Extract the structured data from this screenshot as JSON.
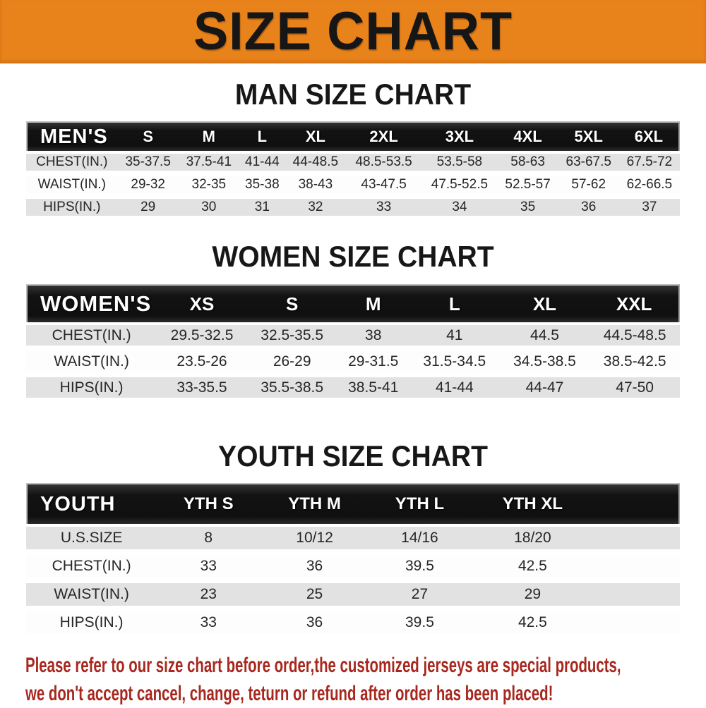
{
  "banner": {
    "title": "SIZE CHART",
    "bg_color": "#E8821B"
  },
  "sections": [
    {
      "title": "MAN SIZE CHART",
      "table": {
        "corner_label": "MEN'S",
        "columns": [
          "S",
          "M",
          "L",
          "XL",
          "2XL",
          "3XL",
          "4XL",
          "5XL",
          "6XL"
        ],
        "rows": [
          {
            "label": "CHEST(IN.)",
            "values": [
              "35-37.5",
              "37.5-41",
              "41-44",
              "44-48.5",
              "48.5-53.5",
              "53.5-58",
              "58-63",
              "63-67.5",
              "67.5-72"
            ]
          },
          {
            "label": "WAIST(IN.)",
            "values": [
              "29-32",
              "32-35",
              "35-38",
              "38-43",
              "43-47.5",
              "47.5-52.5",
              "52.5-57",
              "57-62",
              "62-66.5"
            ]
          },
          {
            "label": "HIPS(IN.)",
            "values": [
              "29",
              "30",
              "31",
              "32",
              "33",
              "34",
              "35",
              "36",
              "37"
            ]
          }
        ]
      }
    },
    {
      "title": "WOMEN SIZE CHART",
      "table": {
        "corner_label": "WOMEN'S",
        "columns": [
          "XS",
          "S",
          "M",
          "L",
          "XL",
          "XXL"
        ],
        "rows": [
          {
            "label": "CHEST(IN.)",
            "values": [
              "29.5-32.5",
              "32.5-35.5",
              "38",
              "41",
              "44.5",
              "44.5-48.5"
            ]
          },
          {
            "label": "WAIST(IN.)",
            "values": [
              "23.5-26",
              "26-29",
              "29-31.5",
              "31.5-34.5",
              "34.5-38.5",
              "38.5-42.5"
            ]
          },
          {
            "label": "HIPS(IN.)",
            "values": [
              "33-35.5",
              "35.5-38.5",
              "38.5-41",
              "41-44",
              "44-47",
              "47-50"
            ]
          }
        ]
      }
    },
    {
      "title": "YOUTH SIZE CHART",
      "table": {
        "corner_label": "YOUTH",
        "columns": [
          "YTH S",
          "YTH M",
          "YTH L",
          "YTH XL"
        ],
        "rows": [
          {
            "label": "U.S.SIZE",
            "values": [
              "8",
              "10/12",
              "14/16",
              "18/20"
            ]
          },
          {
            "label": "CHEST(IN.)",
            "values": [
              "33",
              "36",
              "39.5",
              "42.5"
            ]
          },
          {
            "label": "WAIST(IN.)",
            "values": [
              "23",
              "25",
              "27",
              "29"
            ]
          },
          {
            "label": "HIPS(IN.)",
            "values": [
              "33",
              "36",
              "39.5",
              "42.5"
            ]
          }
        ]
      }
    }
  ],
  "footer": {
    "line1": "Please refer to our size chart before order,the customized jerseys are special products,",
    "line2": "we don't accept cancel, change, teturn or refund after order has been placed!",
    "text_color": "#A8271E"
  }
}
